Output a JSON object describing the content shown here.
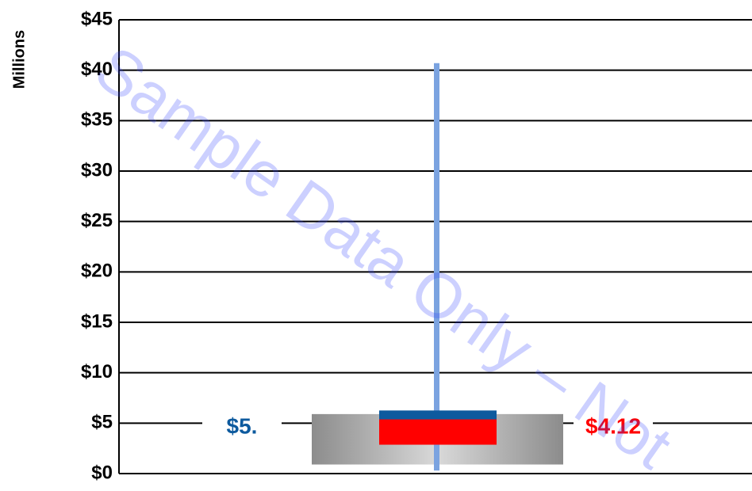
{
  "chart_data": {
    "type": "range",
    "y_label": "Millions",
    "watermark": "Sample Data Only – Not",
    "ylim": [
      0,
      45
    ],
    "yticks": [
      {
        "value": 0,
        "label": "$0"
      },
      {
        "value": 5,
        "label": "$5"
      },
      {
        "value": 10,
        "label": "$10"
      },
      {
        "value": 15,
        "label": "$15"
      },
      {
        "value": 20,
        "label": "$20"
      },
      {
        "value": 25,
        "label": "$25"
      },
      {
        "value": 30,
        "label": "$30"
      },
      {
        "value": 35,
        "label": "$35"
      },
      {
        "value": 40,
        "label": "$40"
      },
      {
        "value": 45,
        "label": "$45"
      }
    ],
    "grid": true,
    "box": {
      "low": 0.9,
      "high": 5.9
    },
    "whisker": {
      "low": 0.3,
      "high": 40.7,
      "color": "#7ba3e0"
    },
    "markers": {
      "values": [
        5,
        4.12
      ],
      "value_labels": [
        "$5.",
        "$4.12"
      ],
      "colors": [
        "#0d5a9e",
        "#ff0000"
      ]
    }
  }
}
